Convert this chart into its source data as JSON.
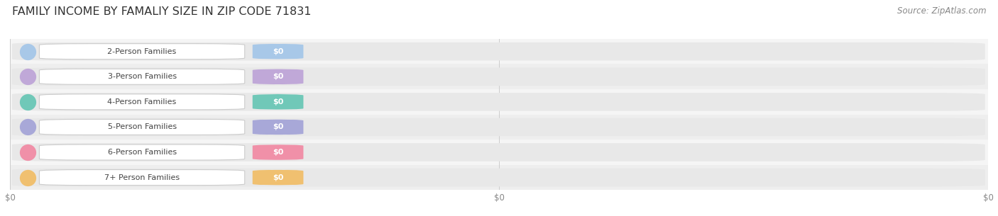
{
  "title": "FAMILY INCOME BY FAMALIY SIZE IN ZIP CODE 71831",
  "source": "Source: ZipAtlas.com",
  "categories": [
    "2-Person Families",
    "3-Person Families",
    "4-Person Families",
    "5-Person Families",
    "6-Person Families",
    "7+ Person Families"
  ],
  "values": [
    0,
    0,
    0,
    0,
    0,
    0
  ],
  "bar_colors": [
    "#a8c8e8",
    "#c0a8d8",
    "#70c8b8",
    "#a8a8d8",
    "#f090a8",
    "#f0c070"
  ],
  "value_labels": [
    "$0",
    "$0",
    "$0",
    "$0",
    "$0",
    "$0"
  ],
  "xtick_labels": [
    "$0",
    "$0",
    "$0"
  ],
  "xtick_positions": [
    0.0,
    0.5,
    1.0
  ],
  "background_color": "#ffffff",
  "row_bg_even": "#f5f5f5",
  "row_bg_odd": "#eeeeee",
  "bar_bg": "#ebebeb",
  "title_fontsize": 11.5,
  "source_fontsize": 8.5,
  "label_fontsize": 8,
  "tick_fontsize": 8.5
}
